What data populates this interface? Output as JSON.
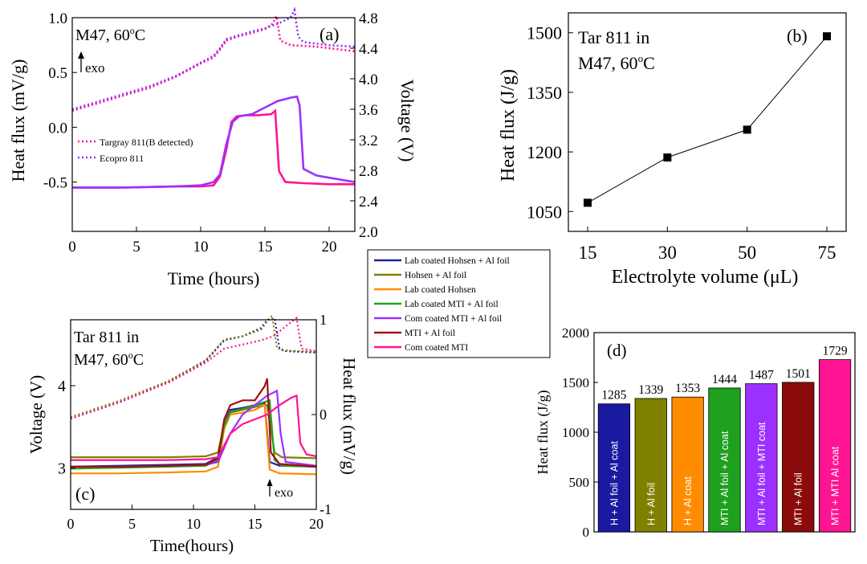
{
  "chart_data": [
    {
      "id": "a",
      "type": "line",
      "panel_label": "(a)",
      "annotation": "M47, 60",
      "annotation_deg": "o",
      "annotation_unit": "C",
      "exo_label": "exo",
      "xlabel": "Time (hours)",
      "ylabel_left": "Heat flux (mV/g)",
      "ylabel_right": "Voltage (V)",
      "xlim": [
        0,
        22
      ],
      "ylim_left": [
        -0.95,
        1.0
      ],
      "ylim_right": [
        2.0,
        4.8
      ],
      "xticks": [
        "0",
        "5",
        "10",
        "15",
        "20"
      ],
      "xtick_values": [
        0,
        5,
        10,
        15,
        20
      ],
      "yticks_left": [
        "1.0",
        "0.5",
        "0.0",
        "-0.5"
      ],
      "ytick_values_left": [
        1.0,
        0.5,
        0.0,
        -0.5
      ],
      "yticks_right": [
        "4.8",
        "4.4",
        "4.0",
        "3.6",
        "3.2",
        "2.8",
        "2.4",
        "2.0"
      ],
      "ytick_values_right": [
        4.8,
        4.4,
        4.0,
        3.6,
        3.2,
        2.8,
        2.4,
        2.0
      ],
      "legend": [
        {
          "name": "Targray 811(B detected)",
          "color": "#ff1493"
        },
        {
          "name": "Ecopro 811",
          "color": "#9b30ff"
        }
      ],
      "series": [
        {
          "name": "Targray 811(B detected)",
          "kind": "voltage",
          "axis": "right",
          "color": "#ff1493",
          "x": [
            0,
            2,
            4,
            6,
            8,
            10,
            11,
            11.5,
            12,
            13,
            14,
            15,
            15.6,
            15.9,
            16.2,
            17,
            19,
            21,
            22
          ],
          "y": [
            3.58,
            3.68,
            3.78,
            3.88,
            4.02,
            4.2,
            4.28,
            4.38,
            4.5,
            4.56,
            4.6,
            4.65,
            4.72,
            4.82,
            4.5,
            4.44,
            4.42,
            4.38,
            4.36
          ]
        },
        {
          "name": "Ecopro 811",
          "kind": "voltage",
          "axis": "right",
          "color": "#9b30ff",
          "x": [
            0,
            2,
            4,
            6,
            8,
            10,
            11,
            11.5,
            12,
            13,
            14,
            15,
            16,
            17,
            17.3,
            17.6,
            18,
            20,
            22
          ],
          "y": [
            3.6,
            3.7,
            3.8,
            3.9,
            4.03,
            4.21,
            4.3,
            4.4,
            4.52,
            4.57,
            4.62,
            4.66,
            4.72,
            4.8,
            4.9,
            4.55,
            4.48,
            4.44,
            4.42
          ]
        },
        {
          "name": "Targray 811(B detected)",
          "kind": "heat",
          "axis": "left",
          "color": "#ff1493",
          "x": [
            0,
            4,
            8,
            10,
            11,
            11.5,
            12,
            12.4,
            12.8,
            13.5,
            14.5,
            15.5,
            15.8,
            16.1,
            16.6,
            18,
            20,
            22
          ],
          "y": [
            -0.55,
            -0.55,
            -0.54,
            -0.54,
            -0.53,
            -0.45,
            -0.2,
            0.05,
            0.1,
            0.11,
            0.11,
            0.12,
            0.15,
            -0.4,
            -0.5,
            -0.51,
            -0.52,
            -0.52
          ]
        },
        {
          "name": "Ecopro 811",
          "kind": "heat",
          "axis": "left",
          "color": "#9b30ff",
          "x": [
            0,
            4,
            8,
            10,
            11,
            11.5,
            12,
            12.5,
            13,
            14,
            15,
            16,
            17,
            17.5,
            17.7,
            18,
            19,
            20,
            22
          ],
          "y": [
            -0.55,
            -0.55,
            -0.54,
            -0.53,
            -0.5,
            -0.43,
            -0.15,
            0.05,
            0.1,
            0.12,
            0.18,
            0.24,
            0.27,
            0.28,
            0.2,
            -0.38,
            -0.44,
            -0.46,
            -0.5
          ]
        }
      ]
    },
    {
      "id": "b",
      "type": "line",
      "panel_label": "(b)",
      "annotation_line1": "Tar 811 in",
      "annotation_line2": "M47, 60",
      "annotation_deg": "o",
      "annotation_unit": "C",
      "xlabel": "Electrolyte volume (μL)",
      "ylabel": "Heat flux (J/g)",
      "categories": [
        "15",
        "30",
        "50",
        "75"
      ],
      "values": [
        1072,
        1186,
        1256,
        1491
      ],
      "ylim": [
        1000,
        1550
      ],
      "yticks": [
        "1500",
        "1350",
        "1200",
        "1050"
      ],
      "ytick_values": [
        1500,
        1350,
        1200,
        1050
      ]
    },
    {
      "id": "c",
      "type": "line",
      "panel_label": "(c)",
      "annotation_line1": "Tar 811 in",
      "annotation_line2": "M47, 60",
      "annotation_deg": "o",
      "annotation_unit": "C",
      "exo_label": "exo",
      "xlabel": "Time(hours)",
      "ylabel_left": "Voltage (V)",
      "ylabel_right": "Heat flux (mV/g)",
      "xlim": [
        0,
        20
      ],
      "ylim_left": [
        2.5,
        4.8
      ],
      "ylim_right": [
        -1,
        1
      ],
      "xticks": [
        "0",
        "5",
        "10",
        "15",
        "20"
      ],
      "xtick_values": [
        0,
        5,
        10,
        15,
        20
      ],
      "yticks_left": [
        "4",
        "3"
      ],
      "ytick_values_left": [
        4,
        3
      ],
      "yticks_right": [
        "1",
        "0",
        "-1"
      ],
      "ytick_values_right": [
        1,
        0,
        -1
      ],
      "legend": [
        {
          "name": "Lab coated Hohsen + Al foil",
          "color": "#1f1fa8"
        },
        {
          "name": "Hohsen + Al foil",
          "color": "#808000"
        },
        {
          "name": "Lab coated Hohsen",
          "color": "#ff8c00"
        },
        {
          "name": "Lab coated MTI + Al foil",
          "color": "#22a022"
        },
        {
          "name": "Com coated MTI + Al foil",
          "color": "#9b30ff"
        },
        {
          "name": "MTI + Al foil",
          "color": "#a01010"
        },
        {
          "name": "Com coated MTI",
          "color": "#ff1493"
        }
      ],
      "series": [
        {
          "name": "Lab coated Hohsen + Al foil",
          "kind": "voltage",
          "axis": "left",
          "color": "#1f1fa8",
          "x": [
            0,
            4,
            8,
            11,
            12.5,
            14,
            15.5,
            16,
            16.6,
            17,
            17.5,
            20
          ],
          "y": [
            3.6,
            3.8,
            4.05,
            4.3,
            4.55,
            4.6,
            4.7,
            4.8,
            4.82,
            4.45,
            4.42,
            4.4
          ]
        },
        {
          "name": "Hohsen + Al foil",
          "kind": "voltage",
          "axis": "left",
          "color": "#808000",
          "x": [
            0,
            4,
            8,
            11,
            12.5,
            14,
            15.5,
            16,
            16.4,
            16.8,
            17.2,
            20
          ],
          "y": [
            3.62,
            3.82,
            4.06,
            4.31,
            4.56,
            4.6,
            4.68,
            4.78,
            4.85,
            4.46,
            4.43,
            4.41
          ]
        },
        {
          "name": "Com coated MTI",
          "kind": "voltage",
          "axis": "left",
          "color": "#ff1493",
          "x": [
            0,
            4,
            8,
            11,
            12.5,
            14,
            15.5,
            16.5,
            17.5,
            18.4,
            18.8,
            20
          ],
          "y": [
            3.6,
            3.8,
            4.04,
            4.28,
            4.45,
            4.5,
            4.55,
            4.6,
            4.72,
            4.82,
            4.45,
            4.42
          ]
        },
        {
          "name": "Lab coated Hohsen + Al foil",
          "kind": "heat",
          "axis": "right",
          "color": "#1f1fa8",
          "x": [
            0,
            4,
            8,
            11,
            12,
            12.5,
            13,
            14,
            15,
            15.8,
            16.2,
            17,
            20
          ],
          "y": [
            -0.55,
            -0.54,
            -0.53,
            -0.52,
            -0.45,
            -0.1,
            0.05,
            0.07,
            0.1,
            0.12,
            -0.5,
            -0.54,
            -0.55
          ]
        },
        {
          "name": "Hohsen + Al foil",
          "kind": "heat",
          "axis": "right",
          "color": "#808000",
          "x": [
            0,
            4,
            8,
            11,
            12,
            12.5,
            13,
            14,
            15,
            16,
            16.6,
            17.2,
            20
          ],
          "y": [
            -0.45,
            -0.45,
            -0.45,
            -0.44,
            -0.4,
            -0.1,
            0.02,
            0.05,
            0.08,
            0.1,
            -0.4,
            -0.45,
            -0.46
          ]
        },
        {
          "name": "Lab coated Hohsen",
          "kind": "heat",
          "axis": "right",
          "color": "#ff8c00",
          "x": [
            0,
            4,
            8,
            11,
            12,
            12.5,
            13,
            14,
            15,
            15.8,
            16.2,
            17,
            20
          ],
          "y": [
            -0.62,
            -0.62,
            -0.61,
            -0.6,
            -0.55,
            -0.15,
            0.0,
            0.02,
            0.05,
            0.1,
            -0.58,
            -0.62,
            -0.63
          ]
        },
        {
          "name": "Lab coated MTI + Al foil",
          "kind": "heat",
          "axis": "right",
          "color": "#22a022",
          "x": [
            0,
            4,
            8,
            11,
            12,
            12.5,
            13,
            14,
            15,
            16.2,
            16.6,
            17.2,
            20
          ],
          "y": [
            -0.57,
            -0.56,
            -0.55,
            -0.54,
            -0.48,
            -0.12,
            0.03,
            0.06,
            0.1,
            0.15,
            -0.48,
            -0.54,
            -0.55
          ]
        },
        {
          "name": "Com coated MTI + Al foil",
          "kind": "heat",
          "axis": "right",
          "color": "#9b30ff",
          "x": [
            0,
            4,
            8,
            11,
            12,
            13,
            14,
            15,
            16,
            16.8,
            17.1,
            17.5,
            20
          ],
          "y": [
            -0.55,
            -0.55,
            -0.54,
            -0.53,
            -0.5,
            -0.2,
            0.0,
            0.1,
            0.2,
            0.25,
            -0.2,
            -0.5,
            -0.54
          ]
        },
        {
          "name": "MTI + Al foil",
          "kind": "heat",
          "axis": "right",
          "color": "#a01010",
          "x": [
            0,
            4,
            8,
            11,
            12,
            12.5,
            13,
            14,
            15,
            15.8,
            16,
            16.3,
            17,
            20
          ],
          "y": [
            -0.55,
            -0.55,
            -0.54,
            -0.53,
            -0.46,
            -0.05,
            0.1,
            0.15,
            0.15,
            0.3,
            0.38,
            -0.4,
            -0.52,
            -0.55
          ]
        },
        {
          "name": "Com coated MTI",
          "kind": "heat",
          "axis": "right",
          "color": "#ff1493",
          "x": [
            0,
            4,
            8,
            11,
            12,
            13,
            14,
            15,
            16,
            17,
            18,
            18.4,
            18.7,
            19.2,
            20
          ],
          "y": [
            -0.48,
            -0.48,
            -0.48,
            -0.47,
            -0.45,
            -0.2,
            -0.1,
            -0.05,
            0.0,
            0.1,
            0.18,
            0.2,
            -0.3,
            -0.42,
            -0.44
          ]
        }
      ]
    },
    {
      "id": "d",
      "type": "bar",
      "panel_label": "(d)",
      "ylabel": "Heat flux (J/g)",
      "ylim": [
        0,
        2000
      ],
      "yticks": [
        "2000",
        "1500",
        "1000",
        "500",
        "0"
      ],
      "ytick_values": [
        2000,
        1500,
        1000,
        500,
        0
      ],
      "categories": [
        "H + Al foil + Al coat",
        "H + Al foil",
        "H + Al coat",
        "MTI + Al foil + Al coat",
        "MTI + Al foil + MTI coat",
        "MTI + Al foil",
        "MTI + MTI Al coat"
      ],
      "values": [
        1285,
        1339,
        1353,
        1444,
        1487,
        1501,
        1729
      ],
      "value_labels": [
        "1285",
        "1339",
        "1353",
        "1444",
        "1487",
        "1501",
        "1729"
      ],
      "colors": [
        "#1a1aa0",
        "#808000",
        "#ff8c00",
        "#1ea01e",
        "#9b30ff",
        "#8b0a0a",
        "#ff1493"
      ]
    }
  ]
}
